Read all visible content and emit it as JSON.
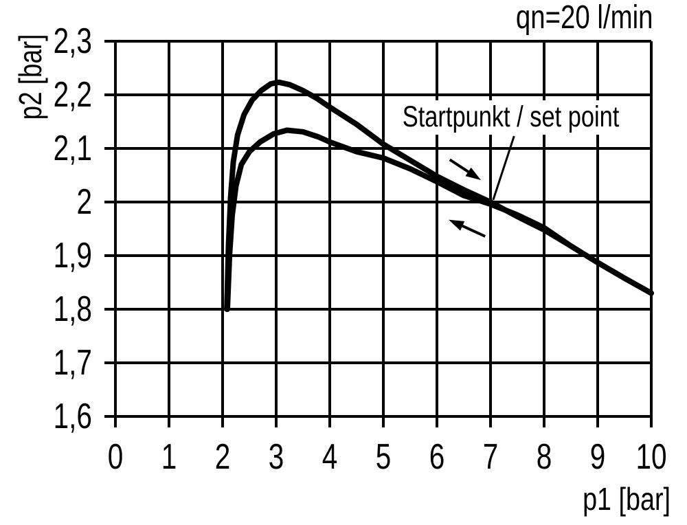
{
  "chart_data": {
    "type": "line",
    "title": "qn=20 l/min",
    "xlabel": "p1 [bar]",
    "ylabel": "p2 [bar]",
    "xlim": [
      0,
      10
    ],
    "ylim": [
      1.6,
      2.3
    ],
    "grid": true,
    "legend": "none",
    "x_ticks": {
      "values": [
        0,
        1,
        2,
        3,
        4,
        5,
        6,
        7,
        8,
        9,
        10
      ],
      "labels": [
        "0",
        "1",
        "2",
        "3",
        "4",
        "5",
        "6",
        "7",
        "8",
        "9",
        "10"
      ]
    },
    "y_ticks": {
      "values": [
        2.3,
        2.2,
        2.1,
        2.0,
        1.9,
        1.8,
        1.7,
        1.6
      ],
      "labels": [
        "2,3",
        "2,2",
        "2,1",
        "2",
        "1,9",
        "1,8",
        "1,7",
        "1,6"
      ]
    },
    "series": [
      {
        "name": "hysteresis_upper",
        "points": [
          [
            2.08,
            1.8
          ],
          [
            2.11,
            1.92
          ],
          [
            2.15,
            2.01
          ],
          [
            2.2,
            2.075
          ],
          [
            2.28,
            2.125
          ],
          [
            2.4,
            2.163
          ],
          [
            2.55,
            2.19
          ],
          [
            2.72,
            2.208
          ],
          [
            2.9,
            2.2205
          ],
          [
            3.05,
            2.2235
          ],
          [
            3.25,
            2.219
          ],
          [
            3.5,
            2.208
          ],
          [
            3.75,
            2.194
          ],
          [
            4.0,
            2.177
          ],
          [
            4.5,
            2.145
          ],
          [
            5.0,
            2.108
          ],
          [
            5.5,
            2.078
          ],
          [
            6.0,
            2.048
          ],
          [
            6.5,
            2.023
          ],
          [
            7.0,
            2.0
          ],
          [
            7.5,
            1.973
          ],
          [
            8.0,
            1.948
          ],
          [
            8.5,
            1.918
          ],
          [
            9.0,
            1.887
          ],
          [
            9.5,
            1.858
          ],
          [
            10.0,
            1.83
          ]
        ]
      },
      {
        "name": "hysteresis_lower",
        "points": [
          [
            2.09,
            1.8
          ],
          [
            2.13,
            1.9
          ],
          [
            2.18,
            1.975
          ],
          [
            2.25,
            2.03
          ],
          [
            2.35,
            2.07
          ],
          [
            2.5,
            2.094
          ],
          [
            2.7,
            2.112
          ],
          [
            2.95,
            2.127
          ],
          [
            3.2,
            2.134
          ],
          [
            3.5,
            2.131
          ],
          [
            3.8,
            2.121
          ],
          [
            4.0,
            2.112
          ],
          [
            4.5,
            2.094
          ],
          [
            5.0,
            2.082
          ],
          [
            5.5,
            2.062
          ],
          [
            6.0,
            2.038
          ],
          [
            6.5,
            2.012
          ],
          [
            7.0,
            1.996
          ],
          [
            7.5,
            1.976
          ],
          [
            8.0,
            1.952
          ],
          [
            8.5,
            1.918
          ],
          [
            9.0,
            1.887
          ],
          [
            9.5,
            1.858
          ],
          [
            10.0,
            1.83
          ]
        ]
      }
    ],
    "annotations": {
      "set_point": {
        "label": "Startpunkt / set point",
        "point": [
          7.05,
          2.004
        ],
        "leader_from": [
          7.44,
          2.123
        ]
      },
      "arrows": [
        {
          "name": "direction-arrow-right",
          "from": [
            6.24,
            2.079
          ],
          "to": [
            6.82,
            2.041
          ]
        },
        {
          "name": "direction-arrow-left",
          "from": [
            6.9,
            1.936
          ],
          "to": [
            6.22,
            1.967
          ]
        }
      ]
    },
    "colors": {
      "line": "#000000",
      "grid": "#000000",
      "background": "#ffffff"
    }
  }
}
